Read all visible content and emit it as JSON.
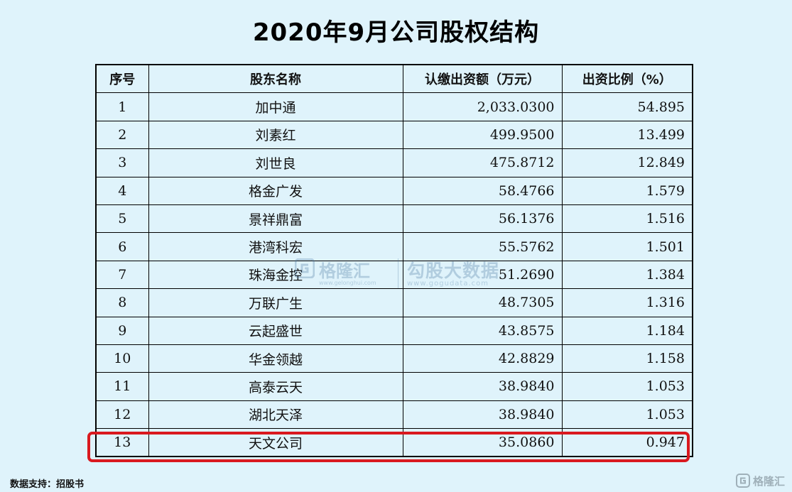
{
  "title": "2020年9月公司股权结构",
  "table": {
    "headers": [
      "序号",
      "股东名称",
      "认缴出资额（万元）",
      "出资比例（%）"
    ],
    "rows": [
      {
        "no": "1",
        "name": "加中通",
        "amount": "2,033.0300",
        "ratio": "54.895"
      },
      {
        "no": "2",
        "name": "刘素红",
        "amount": "499.9500",
        "ratio": "13.499"
      },
      {
        "no": "3",
        "name": "刘世良",
        "amount": "475.8712",
        "ratio": "12.849"
      },
      {
        "no": "4",
        "name": "格金广发",
        "amount": "58.4766",
        "ratio": "1.579"
      },
      {
        "no": "5",
        "name": "景祥鼎富",
        "amount": "56.1376",
        "ratio": "1.516"
      },
      {
        "no": "6",
        "name": "港湾科宏",
        "amount": "55.5762",
        "ratio": "1.501"
      },
      {
        "no": "7",
        "name": "珠海金控",
        "amount": "51.2690",
        "ratio": "1.384"
      },
      {
        "no": "8",
        "name": "万联广生",
        "amount": "48.7305",
        "ratio": "1.316"
      },
      {
        "no": "9",
        "name": "云起盛世",
        "amount": "43.8575",
        "ratio": "1.184"
      },
      {
        "no": "10",
        "name": "华金领越",
        "amount": "42.8829",
        "ratio": "1.158"
      },
      {
        "no": "11",
        "name": "高泰云天",
        "amount": "38.9840",
        "ratio": "1.053"
      },
      {
        "no": "12",
        "name": "湖北天泽",
        "amount": "38.9840",
        "ratio": "1.053"
      },
      {
        "no": "13",
        "name": "天文公司",
        "amount": "35.0860",
        "ratio": "0.947"
      }
    ],
    "highlighted_row": "13"
  },
  "watermark": {
    "brand_left": "格隆汇",
    "url_left": "www.gelonghui.com",
    "brand_right": "勾股大数据",
    "url_right": "www.gogudata.com"
  },
  "source": "数据支持：招股书",
  "corner_logo": "格隆汇",
  "colors": {
    "background": "#dff3fb",
    "highlight": "#d9191f",
    "watermark": "#3d6f99"
  }
}
